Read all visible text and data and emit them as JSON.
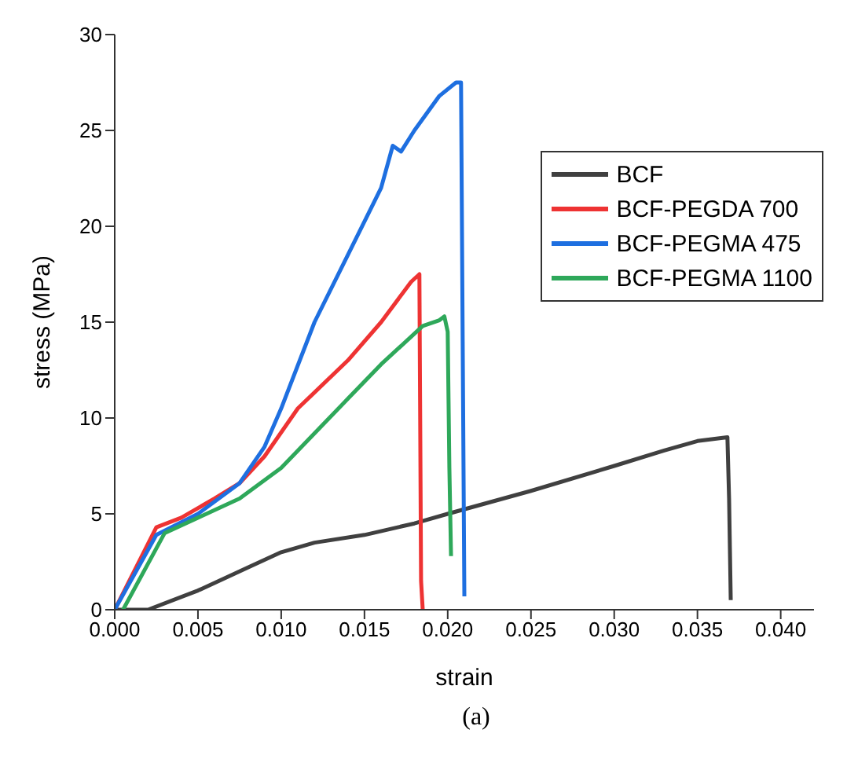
{
  "chart_data": {
    "type": "line",
    "xlabel": "strain",
    "ylabel": "stress (MPa)",
    "annotations": [
      "(a)"
    ],
    "xlim": [
      0,
      0.042
    ],
    "ylim": [
      0,
      30
    ],
    "xticks": [
      {
        "value": 0,
        "label": "0.000"
      },
      {
        "value": 0.005,
        "label": "0.005"
      },
      {
        "value": 0.01,
        "label": "0.010"
      },
      {
        "value": 0.015,
        "label": "0.015"
      },
      {
        "value": 0.02,
        "label": "0.020"
      },
      {
        "value": 0.025,
        "label": "0.025"
      },
      {
        "value": 0.03,
        "label": "0.030"
      },
      {
        "value": 0.035,
        "label": "0.035"
      },
      {
        "value": 0.04,
        "label": "0.040"
      }
    ],
    "yticks": [
      0,
      5,
      10,
      15,
      20,
      25,
      30
    ],
    "grid": false,
    "legend": "top right",
    "marker": "none",
    "line_style": "solid",
    "series": [
      {
        "name": "BCF",
        "color": "#404040",
        "x": [
          0,
          0.002,
          0.005,
          0.008,
          0.01,
          0.012,
          0.015,
          0.018,
          0.02,
          0.025,
          0.03,
          0.033,
          0.035,
          0.0368,
          0.0369,
          0.037
        ],
        "values": [
          0,
          0,
          1,
          2.2,
          3,
          3.5,
          3.9,
          4.5,
          5,
          6.2,
          7.5,
          8.3,
          8.8,
          9,
          5.8,
          0.5
        ]
      },
      {
        "name": "BCF-PEGDA 700",
        "color": "#ee3333",
        "x": [
          0,
          0.0025,
          0.004,
          0.006,
          0.0075,
          0.009,
          0.011,
          0.014,
          0.016,
          0.0178,
          0.0183,
          0.0184,
          0.0185
        ],
        "values": [
          0,
          4.3,
          4.8,
          5.8,
          6.6,
          8,
          10.5,
          13,
          15,
          17.1,
          17.5,
          1.5,
          0
        ]
      },
      {
        "name": "BCF-PEGMA 475",
        "color": "#1e6fe0",
        "x": [
          0,
          0.0025,
          0.005,
          0.0075,
          0.009,
          0.01,
          0.012,
          0.014,
          0.016,
          0.0167,
          0.0172,
          0.018,
          0.0195,
          0.0205,
          0.0208,
          0.0209,
          0.021
        ],
        "values": [
          0,
          3.9,
          5,
          6.6,
          8.5,
          10.5,
          15,
          18.5,
          22,
          24.2,
          23.9,
          25,
          26.8,
          27.5,
          27.5,
          14,
          0.7
        ]
      },
      {
        "name": "BCF-PEGMA 1100",
        "color": "#2ea85a",
        "x": [
          0.0005,
          0.003,
          0.005,
          0.0075,
          0.01,
          0.012,
          0.014,
          0.016,
          0.0185,
          0.0195,
          0.0198,
          0.02,
          0.0201,
          0.0202
        ],
        "values": [
          0,
          4,
          4.8,
          5.8,
          7.4,
          9.2,
          11,
          12.8,
          14.8,
          15.1,
          15.3,
          14.5,
          7.4,
          2.8
        ]
      }
    ]
  }
}
